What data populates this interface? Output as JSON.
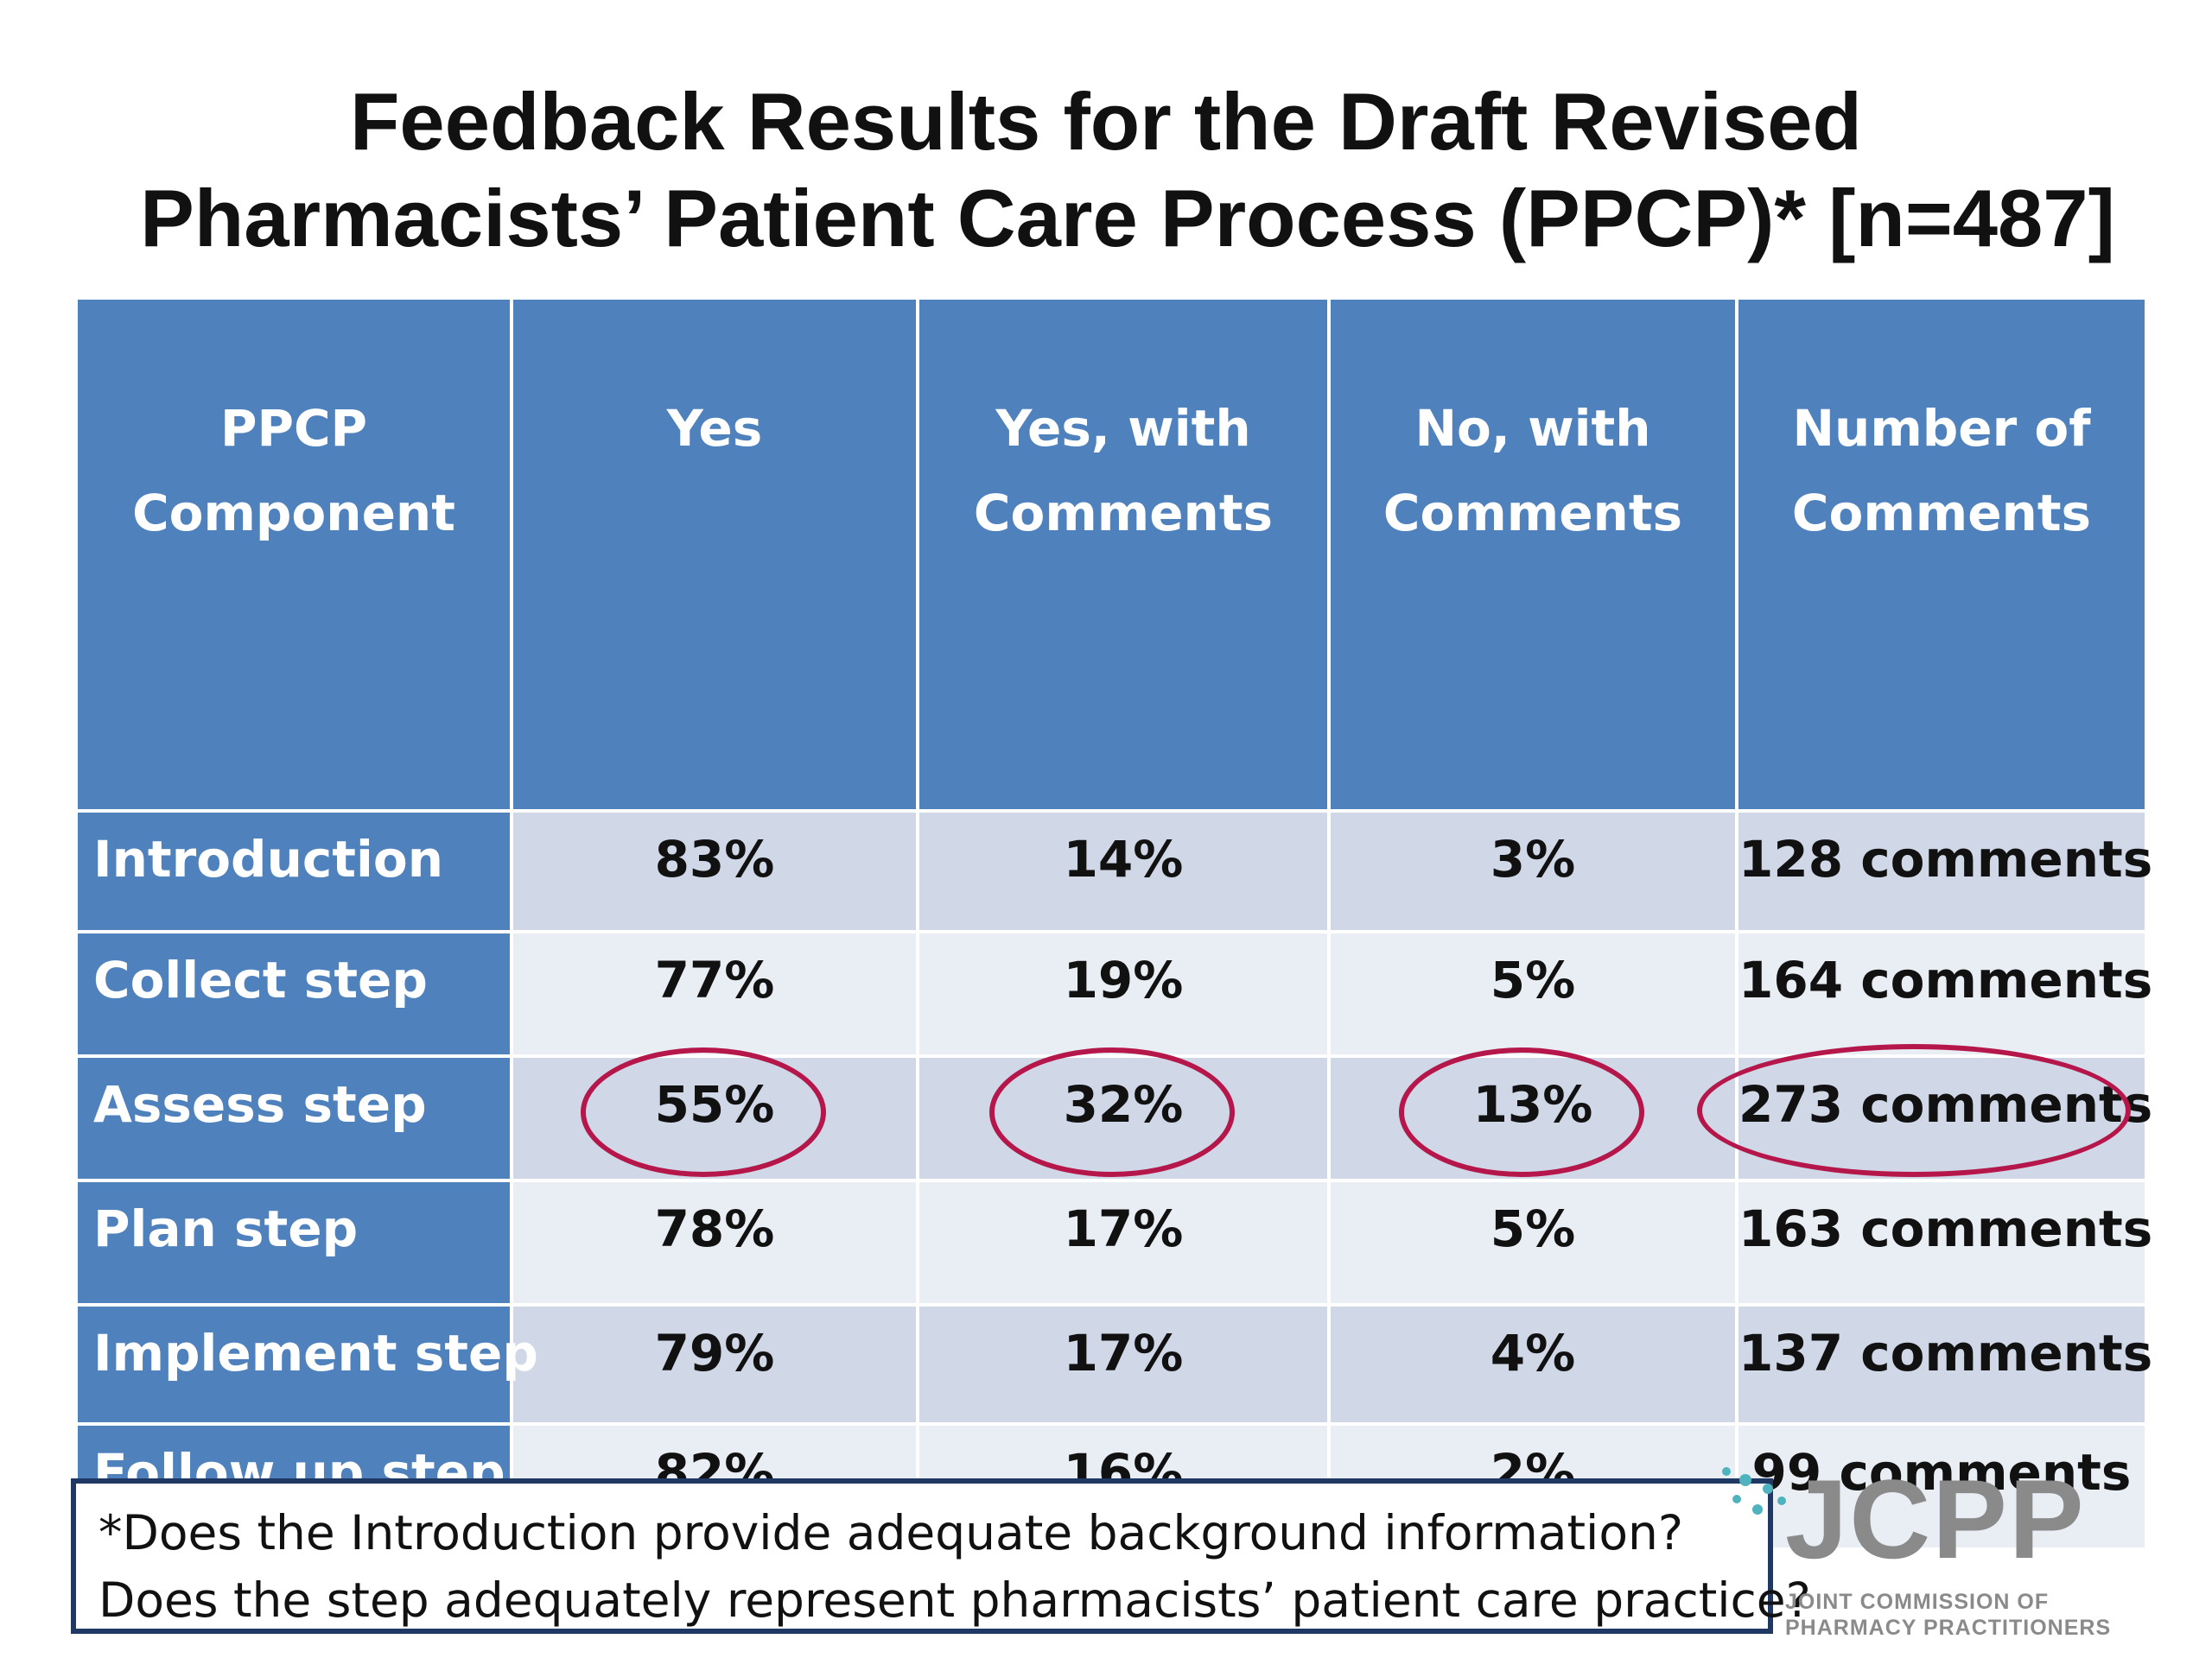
{
  "title": {
    "line1": "Feedback Results for the Draft Revised",
    "line2": "Pharmacists’ Patient Care Process (PPCP)*  [n=487]"
  },
  "table": {
    "headers": [
      [
        "PPCP",
        "Component"
      ],
      [
        "Yes",
        ""
      ],
      [
        "Yes, with",
        "Comments"
      ],
      [
        "No, with",
        "Comments"
      ],
      [
        "Number of",
        "Comments"
      ]
    ],
    "rows": [
      {
        "component": "Introduction",
        "yes": "83%",
        "yes_with": "14%",
        "no_with": "3%",
        "comments": "128 comments"
      },
      {
        "component": "Collect step",
        "yes": "77%",
        "yes_with": "19%",
        "no_with": "5%",
        "comments": "164 comments"
      },
      {
        "component": "Assess step",
        "yes": "55%",
        "yes_with": "32%",
        "no_with": "13%",
        "comments": "273 comments"
      },
      {
        "component": "Plan step",
        "yes": "78%",
        "yes_with": "17%",
        "no_with": "5%",
        "comments": "163 comments"
      },
      {
        "component": "Implement step",
        "yes": "79%",
        "yes_with": "17%",
        "no_with": "4%",
        "comments": "137 comments"
      },
      {
        "component": "Follow up step",
        "yes": "82%",
        "yes_with": "16%",
        "no_with": "2%",
        "comments": "99 comments"
      }
    ]
  },
  "footnote": {
    "line1": "*Does the Introduction provide adequate background information?",
    "line2": "Does the step adequately represent pharmacists’ patient care practice?"
  },
  "logo": {
    "name": "JCPP",
    "sub_line1": "JOINT COMMISSION OF",
    "sub_line2": "PHARMACY PRACTITIONERS"
  },
  "colors": {
    "header_blue": "#4f81bd",
    "row_dark": "#d0d8e8",
    "row_light": "#e9edf4",
    "highlight_circle": "#b5174b",
    "logo_dots": "#4fb3bf"
  }
}
